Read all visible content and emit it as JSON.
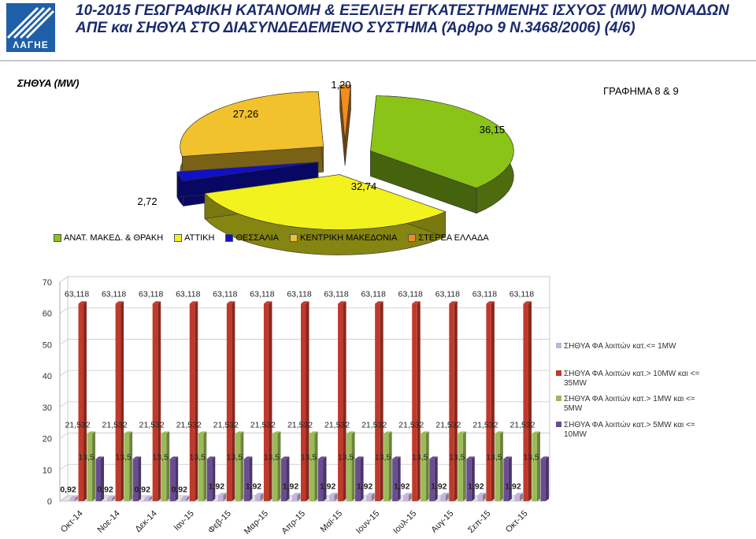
{
  "header": {
    "logo_text": "ΛΑΓΗΕ",
    "title": "10-2015 ΓΕΩΓΡΑΦΙΚΗ ΚΑΤΑΝΟΜΗ & ΕΞΕΛΙΞΗ ΕΓΚΑΤΕΣΤΗΜΕΝΗΣ ΙΣΧΥΟΣ (MW) ΜΟΝΑΔΩΝ ΑΠΕ και ΣΗΘΥΑ ΣΤΟ ΔΙΑΣΥΝΔΕΔΕΜΕΝΟ ΣΥΣΤΗΜΑ (Άρθρο 9 Ν.3468/2006) (4/6)"
  },
  "chart_data": [
    {
      "type": "pie",
      "title": "ΣΗΘΥΑ (MW)",
      "annotation": "ΓΡΑΦΗΜΑ 8 & 9",
      "labels": [
        "ΑΝΑΤ. ΜΑΚΕΔ. & ΘΡΑΚΗ",
        "ΑΤΤΙΚΗ",
        "ΘΕΣΣΑΛΙΑ",
        "ΚΕΝΤΡΙΚΗ ΜΑΚΕΔΟΝΙΑ",
        "ΣΤΕΡΕΑ ΕΛΛΑΔΑ"
      ],
      "values": [
        36.15,
        32.74,
        2.72,
        27.26,
        1.2
      ],
      "value_labels": [
        "36,15",
        "32,74",
        "2,72",
        "27,26",
        "1,20"
      ],
      "colors": [
        "#8ac417",
        "#f2f21e",
        "#1010c8",
        "#f2c22c",
        "#f28c1a"
      ],
      "legend": "bottom"
    },
    {
      "type": "bar",
      "categories": [
        "Οκτ-14",
        "Νοε-14",
        "Δεκ-14",
        "Ιαν-15",
        "Φεβ-15",
        "Μαρ-15",
        "Απρ-15",
        "Μαϊ-15",
        "Ιουν-15",
        "Ιουλ-15",
        "Αυγ-15",
        "Σεπ-15",
        "Οκτ-15"
      ],
      "ylim": [
        0,
        70
      ],
      "yticks": [
        0,
        10,
        20,
        30,
        40,
        50,
        60,
        70
      ],
      "legend": "right",
      "series": [
        {
          "name": "ΣΗΘΥΑ ΦΑ λοιπών κατ.<= 1MW",
          "color": "#c6b3d9",
          "values": [
            0.92,
            0.92,
            0.92,
            0.92,
            1.92,
            1.92,
            1.92,
            1.92,
            1.92,
            1.92,
            1.92,
            1.92,
            1.92
          ],
          "labels": [
            "0,92",
            "0,92",
            "0,92",
            "0,92",
            "1,92",
            "1,92",
            "1,92",
            "1,92",
            "1,92",
            "1,92",
            "1,92",
            "1,92",
            "1,92"
          ]
        },
        {
          "name": "ΣΗΘΥΑ ΦΑ λοιπών κατ.> 10MW και <= 35MW",
          "color": "#c0392b",
          "values": [
            63.118,
            63.118,
            63.118,
            63.118,
            63.118,
            63.118,
            63.118,
            63.118,
            63.118,
            63.118,
            63.118,
            63.118,
            63.118
          ],
          "labels": [
            "63,118",
            "63,118",
            "63,118",
            "63,118",
            "63,118",
            "63,118",
            "63,118",
            "63,118",
            "63,118",
            "63,118",
            "63,118",
            "63,118",
            "63,118"
          ]
        },
        {
          "name": "ΣΗΘΥΑ ΦΑ λοιπών κατ.> 1MW και <= 5MW",
          "color": "#9bbb59",
          "values": [
            21.532,
            21.532,
            21.532,
            21.532,
            21.532,
            21.532,
            21.532,
            21.532,
            21.532,
            21.532,
            21.532,
            21.532,
            21.532
          ],
          "labels": [
            "21,532",
            "21,532",
            "21,532",
            "21,532",
            "21,532",
            "21,532",
            "21,532",
            "21,532",
            "21,532",
            "21,532",
            "21,532",
            "21,532",
            "21,532"
          ]
        },
        {
          "name": "ΣΗΘΥΑ ΦΑ λοιπών κατ.> 5MW και <= 10MW",
          "color": "#6a4c93",
          "values": [
            13.5,
            13.5,
            13.5,
            13.5,
            13.5,
            13.5,
            13.5,
            13.5,
            13.5,
            13.5,
            13.5,
            13.5,
            13.5
          ],
          "labels": [
            "13,5",
            "13,5",
            "13,5",
            "13,5",
            "13,5",
            "13,5",
            "13,5",
            "13,5",
            "13,5",
            "13,5",
            "13,5",
            "13,5",
            "13,5"
          ]
        }
      ]
    }
  ]
}
